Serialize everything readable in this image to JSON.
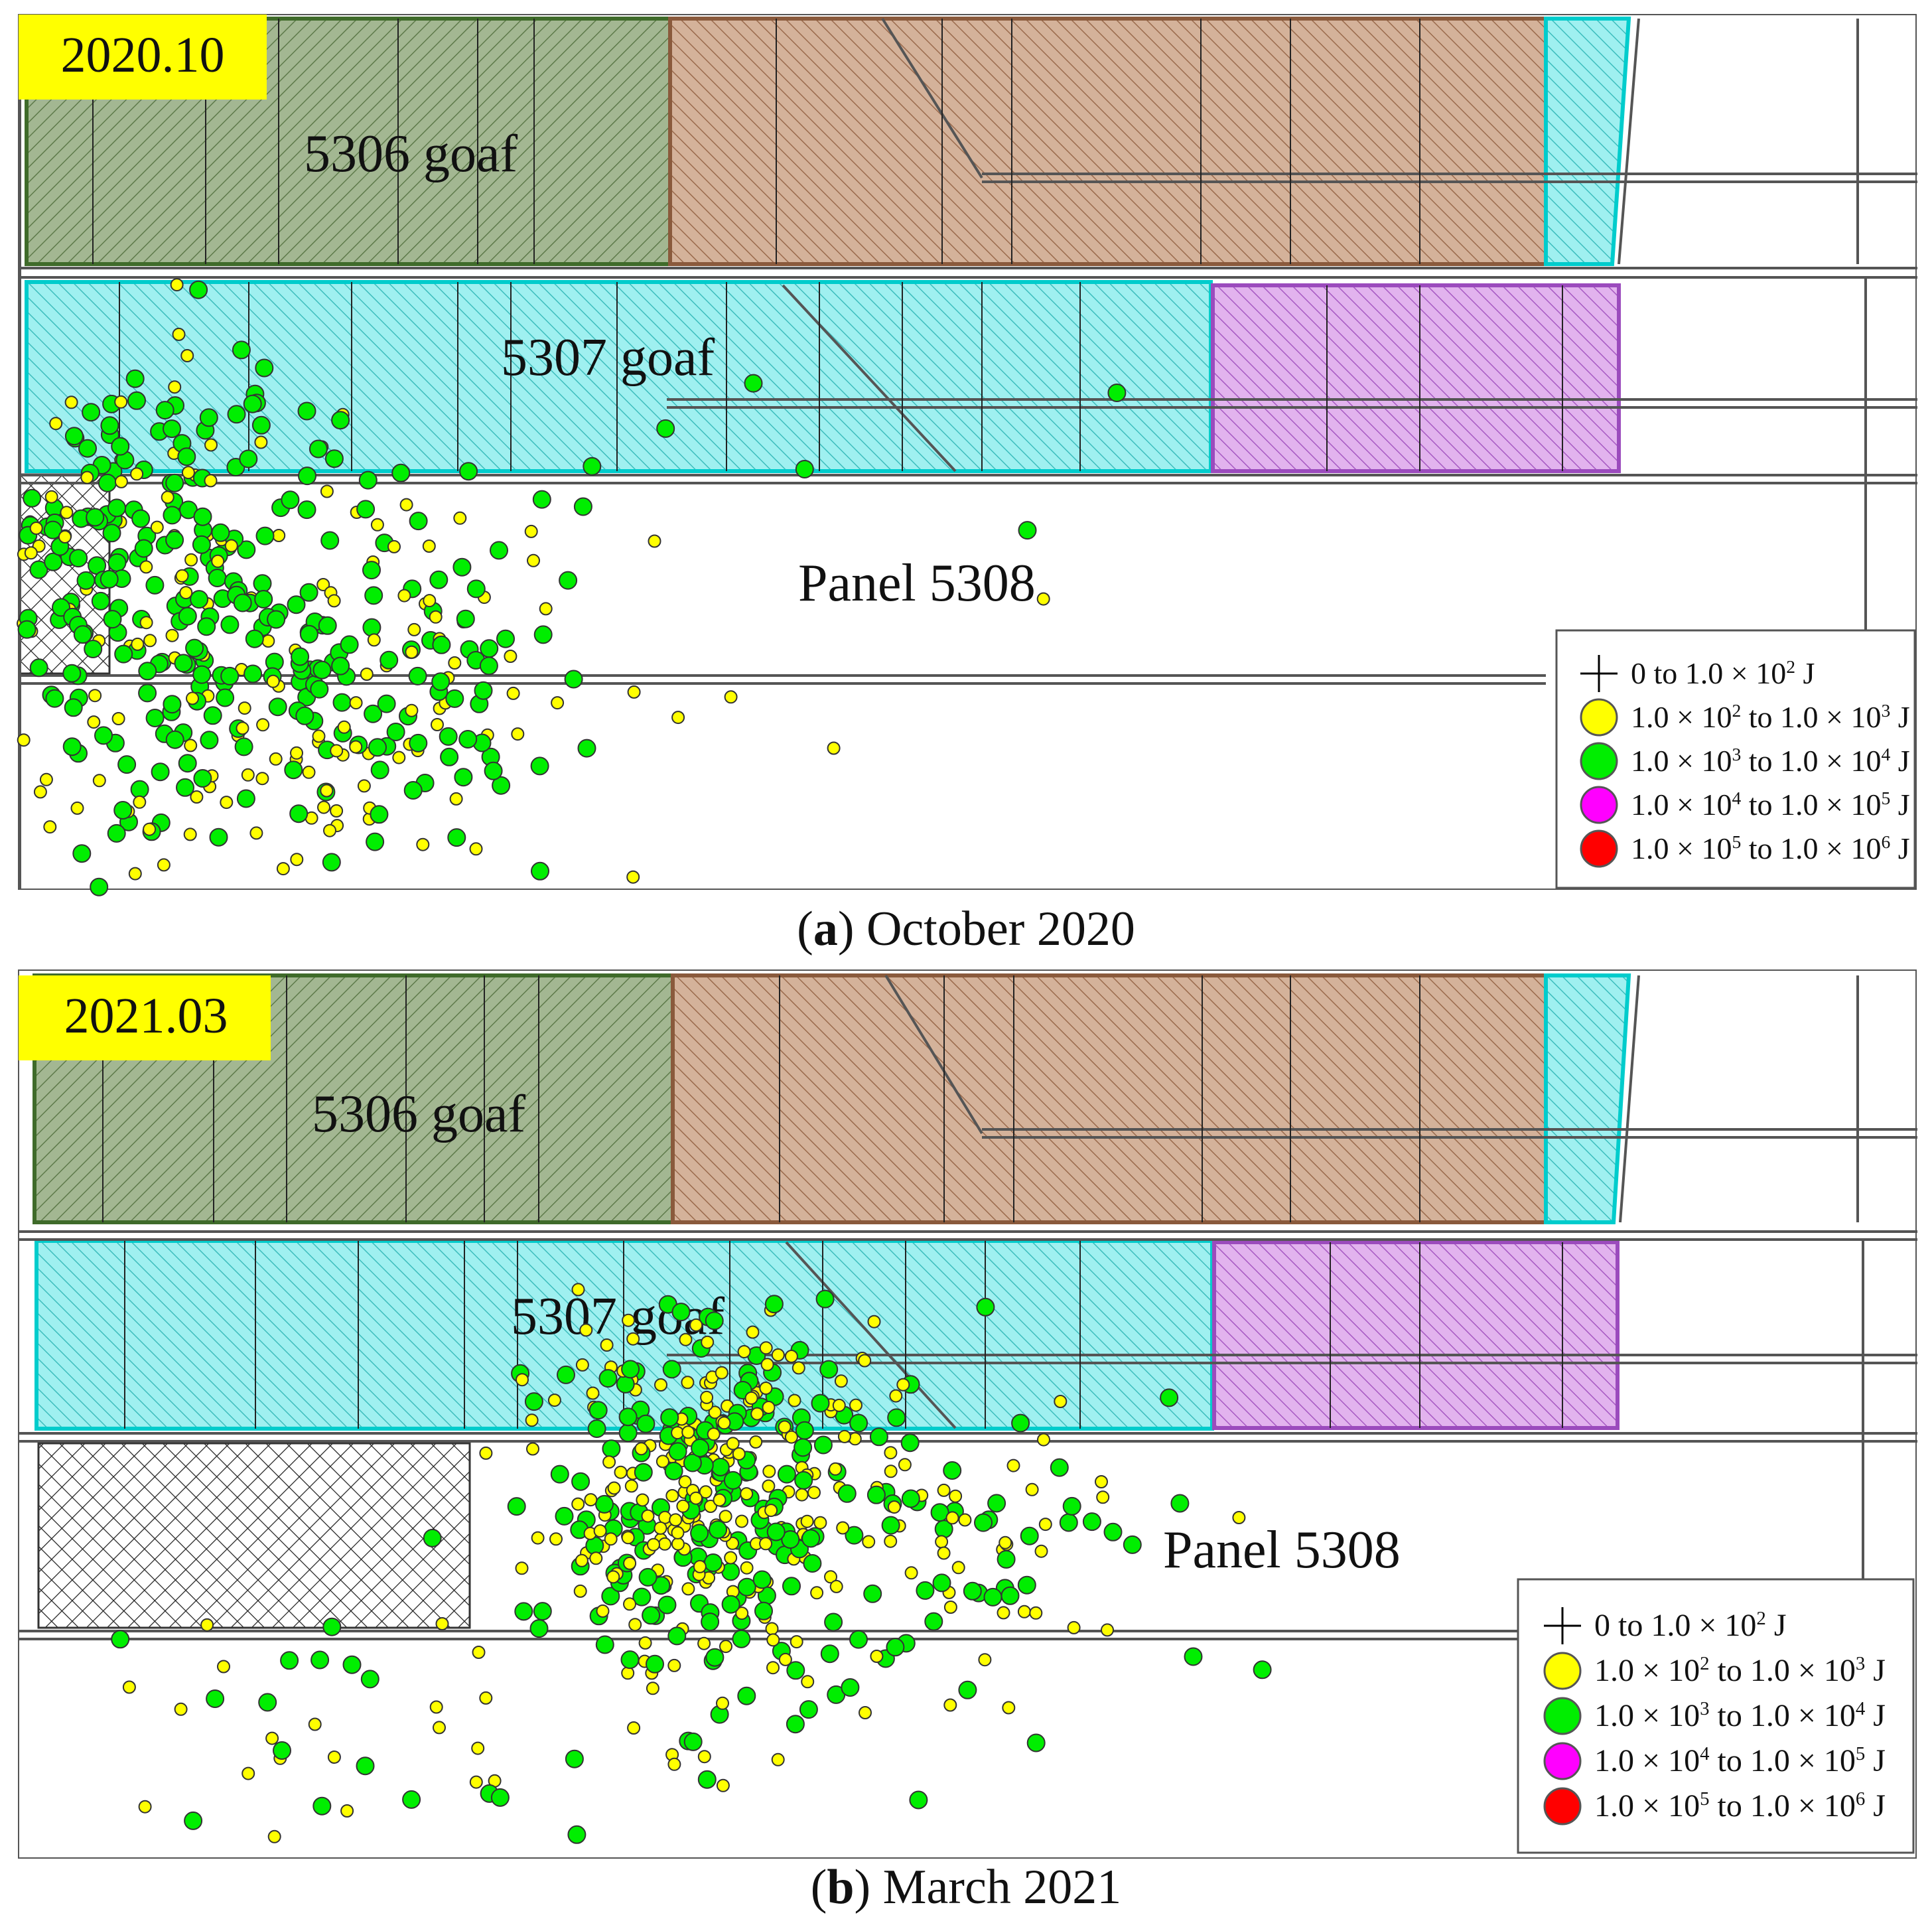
{
  "panels": [
    {
      "date_tag": "2020.10",
      "caption_letter": "a",
      "caption_text": "October 2020",
      "labels": {
        "goaf_5306": "5306 goaf",
        "goaf_5307": "5307 goaf",
        "panel_5308": "Panel 5308"
      },
      "legend": [
        {
          "symbol": "cross",
          "color": "#000000",
          "pre": "0 to 1.0 × 10",
          "e1": "2",
          "mid": "",
          "e2": "",
          "post": " J"
        },
        {
          "symbol": "circle",
          "color": "#ffff00",
          "pre": "1.0 × 10",
          "e1": "2",
          "mid": " to 1.0 × 10",
          "e2": "3",
          "post": " J"
        },
        {
          "symbol": "circle",
          "color": "#00ee00",
          "pre": "1.0 × 10",
          "e1": "3",
          "mid": " to 1.0 × 10",
          "e2": "4",
          "post": " J"
        },
        {
          "symbol": "circle",
          "color": "#ff00ff",
          "pre": "1.0 × 10",
          "e1": "4",
          "mid": " to 1.0 × 10",
          "e2": "5",
          "post": " J"
        },
        {
          "symbol": "circle",
          "color": "#ff0000",
          "pre": "1.0 × 10",
          "e1": "5",
          "mid": " to 1.0 × 10",
          "e2": "6",
          "post": " J"
        }
      ]
    },
    {
      "date_tag": "2021.03",
      "caption_letter": "b",
      "caption_text": "March 2021",
      "labels": {
        "goaf_5306": "5306 goaf",
        "goaf_5307": "5307 goaf",
        "panel_5308": "Panel 5308"
      },
      "legend": [
        {
          "symbol": "cross",
          "color": "#000000",
          "pre": "0 to 1.0 × 10",
          "e1": "2",
          "mid": "",
          "e2": "",
          "post": " J"
        },
        {
          "symbol": "circle",
          "color": "#ffff00",
          "pre": "1.0 × 10",
          "e1": "2",
          "mid": " to 1.0 × 10",
          "e2": "3",
          "post": " J"
        },
        {
          "symbol": "circle",
          "color": "#00ee00",
          "pre": "1.0 × 10",
          "e1": "3",
          "mid": " to 1.0 × 10",
          "e2": "4",
          "post": " J"
        },
        {
          "symbol": "circle",
          "color": "#ff00ff",
          "pre": "1.0 × 10",
          "e1": "4",
          "mid": " to 1.0 × 10",
          "e2": "5",
          "post": " J"
        },
        {
          "symbol": "circle",
          "color": "#ff0000",
          "pre": "1.0 × 10",
          "e1": "5",
          "mid": " to 1.0 × 10",
          "e2": "6",
          "post": " J"
        }
      ]
    }
  ],
  "colors": {
    "goaf_5306": "#9bb08a",
    "goaf_brown": "#c9a58b",
    "goaf_cyan": "#8fe8e8",
    "goaf_purple": "#d79be6",
    "tag_bg": "#ffff00",
    "small_event": "#ffff00",
    "large_event": "#00ee00"
  }
}
